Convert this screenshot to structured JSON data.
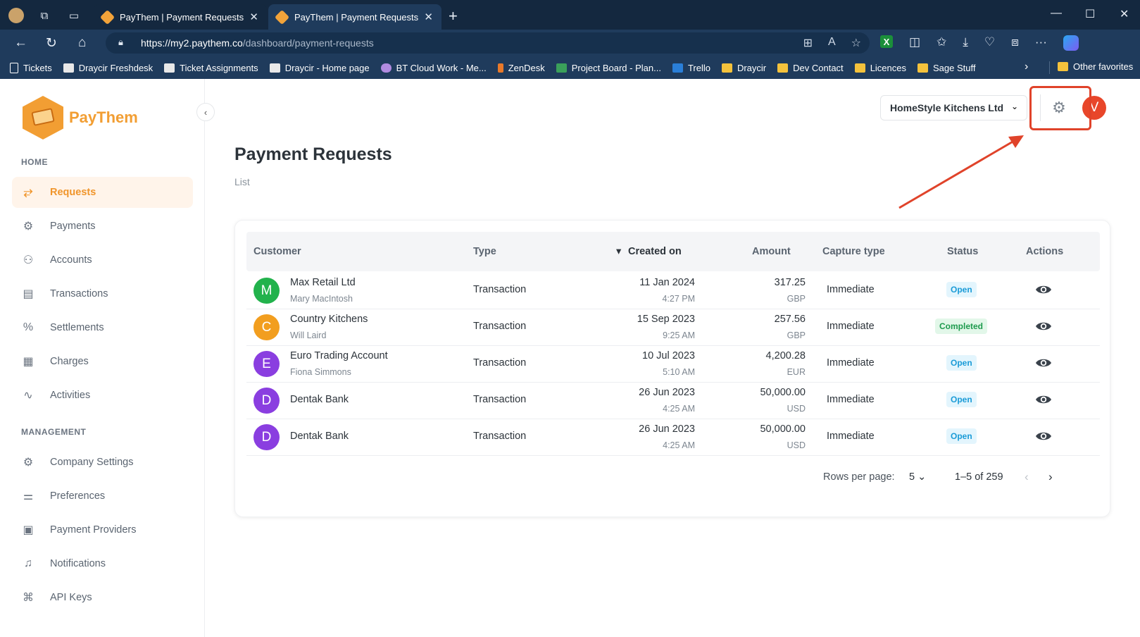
{
  "browser": {
    "tabs": [
      {
        "title": "PayThem | Payment Requests",
        "close": "✕"
      },
      {
        "title": "PayThem | Payment Requests",
        "close": "✕"
      }
    ],
    "new_tab": "+",
    "url_host": "https://my2.paythem.co",
    "url_path": "/dashboard/payment-requests",
    "bookmarks": [
      {
        "label": "Tickets",
        "icon": "page-icon"
      },
      {
        "label": "Draycir Freshdesk",
        "icon": "site-icon"
      },
      {
        "label": "Ticket Assignments",
        "icon": "site-icon"
      },
      {
        "label": "Draycir - Home page",
        "icon": "site-icon"
      },
      {
        "label": "BT Cloud Work - Me...",
        "icon": "bt-icon"
      },
      {
        "label": "ZenDesk",
        "icon": "zendesk-icon"
      },
      {
        "label": "Project Board - Plan...",
        "icon": "planner-icon"
      },
      {
        "label": "Trello",
        "icon": "trello-icon"
      },
      {
        "label": "Draycir",
        "icon": "folder-icon"
      },
      {
        "label": "Dev Contact",
        "icon": "folder-icon"
      },
      {
        "label": "Licences",
        "icon": "folder-icon"
      },
      {
        "label": "Sage Stuff",
        "icon": "folder-icon"
      }
    ],
    "other_favorites": "Other favorites"
  },
  "app": {
    "logo_text": "PayThem",
    "sidebar": {
      "home_label": "HOME",
      "management_label": "MANAGEMENT",
      "home_items": [
        {
          "label": "Requests",
          "icon": "requests-icon",
          "active": true
        },
        {
          "label": "Payments",
          "icon": "payments-icon"
        },
        {
          "label": "Accounts",
          "icon": "accounts-icon"
        },
        {
          "label": "Transactions",
          "icon": "transactions-icon"
        },
        {
          "label": "Settlements",
          "icon": "percent-icon"
        },
        {
          "label": "Charges",
          "icon": "calculator-icon"
        },
        {
          "label": "Activities",
          "icon": "activity-icon"
        }
      ],
      "management_items": [
        {
          "label": "Company Settings",
          "icon": "gear-icon"
        },
        {
          "label": "Preferences",
          "icon": "sliders-icon"
        },
        {
          "label": "Payment Providers",
          "icon": "provider-icon"
        },
        {
          "label": "Notifications",
          "icon": "bell-icon"
        },
        {
          "label": "API Keys",
          "icon": "api-icon"
        }
      ]
    },
    "header": {
      "company": "HomeStyle Kitchens Ltd",
      "user_initial": "V"
    },
    "page_title": "Payment Requests",
    "breadcrumb": "List",
    "table": {
      "columns": {
        "customer": "Customer",
        "type": "Type",
        "created_on": "Created on",
        "amount": "Amount",
        "capture_type": "Capture type",
        "status": "Status",
        "actions": "Actions"
      },
      "rows": [
        {
          "initial": "M",
          "color": "#22b24c",
          "customer": "Max Retail Ltd",
          "contact": "Mary MacIntosh",
          "type": "Transaction",
          "date": "11 Jan 2024",
          "time": "4:27 PM",
          "amount": "317.25",
          "currency": "GBP",
          "capture": "Immediate",
          "status": "Open"
        },
        {
          "initial": "C",
          "color": "#f29e1f",
          "customer": "Country Kitchens",
          "contact": "Will Laird",
          "type": "Transaction",
          "date": "15 Sep 2023",
          "time": "9:25 AM",
          "amount": "257.56",
          "currency": "GBP",
          "capture": "Immediate",
          "status": "Completed"
        },
        {
          "initial": "E",
          "color": "#8a3ee0",
          "customer": "Euro Trading Account",
          "contact": "Fiona Simmons",
          "type": "Transaction",
          "date": "10 Jul 2023",
          "time": "5:10 AM",
          "amount": "4,200.28",
          "currency": "EUR",
          "capture": "Immediate",
          "status": "Open"
        },
        {
          "initial": "D",
          "color": "#8a3ee0",
          "customer": "Dentak Bank",
          "contact": "",
          "type": "Transaction",
          "date": "26 Jun 2023",
          "time": "4:25 AM",
          "amount": "50,000.00",
          "currency": "USD",
          "capture": "Immediate",
          "status": "Open"
        },
        {
          "initial": "D",
          "color": "#8a3ee0",
          "customer": "Dentak Bank",
          "contact": "",
          "type": "Transaction",
          "date": "26 Jun 2023",
          "time": "4:25 AM",
          "amount": "50,000.00",
          "currency": "USD",
          "capture": "Immediate",
          "status": "Open"
        }
      ]
    },
    "pagination": {
      "rows_per_page_label": "Rows per page:",
      "rows_per_page": "5",
      "range": "1–5 of 259"
    }
  }
}
